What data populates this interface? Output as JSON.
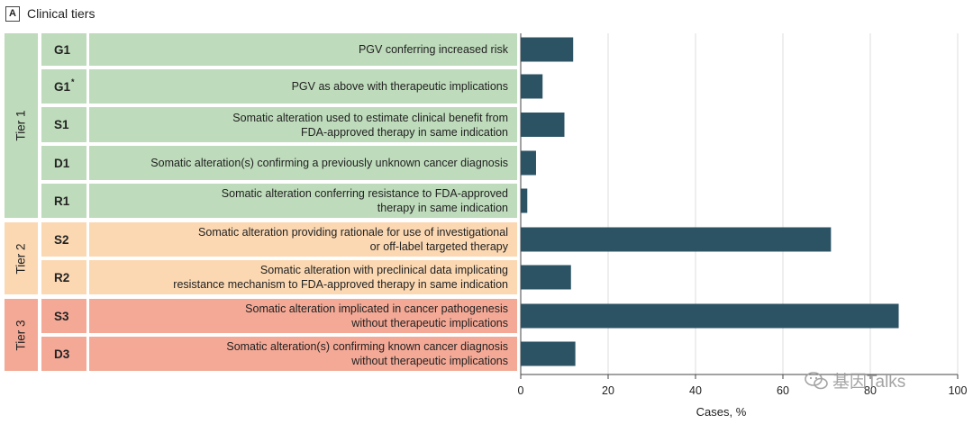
{
  "panel": {
    "letter": "A",
    "title": "Clinical tiers"
  },
  "tiers": [
    "Tier 1",
    "Tier 2",
    "Tier 3"
  ],
  "rows": [
    {
      "code": "G1",
      "sup": "",
      "tier": 1,
      "description": "PGV conferring increased risk"
    },
    {
      "code": "G1",
      "sup": "*",
      "tier": 1,
      "description": "PGV as above with therapeutic implications"
    },
    {
      "code": "S1",
      "sup": "",
      "tier": 1,
      "description": "Somatic alteration used to estimate clinical benefit from\nFDA-approved therapy in same indication"
    },
    {
      "code": "D1",
      "sup": "",
      "tier": 1,
      "description": "Somatic alteration(s) confirming a previously unknown cancer diagnosis"
    },
    {
      "code": "R1",
      "sup": "",
      "tier": 1,
      "description": "Somatic alteration conferring resistance to FDA-approved\ntherapy in same indication"
    },
    {
      "code": "S2",
      "sup": "",
      "tier": 2,
      "description": "Somatic alteration providing rationale for use of investigational\nor off-label targeted therapy"
    },
    {
      "code": "R2",
      "sup": "",
      "tier": 2,
      "description": "Somatic alteration with preclinical data implicating\nresistance mechanism to FDA-approved therapy in same indication"
    },
    {
      "code": "S3",
      "sup": "",
      "tier": 3,
      "description": "Somatic alteration implicated in cancer pathogenesis\nwithout therapeutic implications"
    },
    {
      "code": "D3",
      "sup": "",
      "tier": 3,
      "description": "Somatic alteration(s) confirming known cancer diagnosis\nwithout therapeutic implications"
    }
  ],
  "chart_data": {
    "type": "bar",
    "orientation": "horizontal",
    "categories": [
      "G1",
      "G1*",
      "S1",
      "D1",
      "R1",
      "S2",
      "R2",
      "S3",
      "D3"
    ],
    "values": [
      12,
      5,
      10,
      3.5,
      1.5,
      71,
      11.5,
      86.5,
      12.5
    ],
    "xlabel": "Cases, %",
    "xlim": [
      0,
      100
    ],
    "xticks": [
      0,
      20,
      40,
      60,
      80,
      100
    ],
    "grid": true,
    "bar_color": "#2c5364"
  },
  "watermark": "基因Talks"
}
